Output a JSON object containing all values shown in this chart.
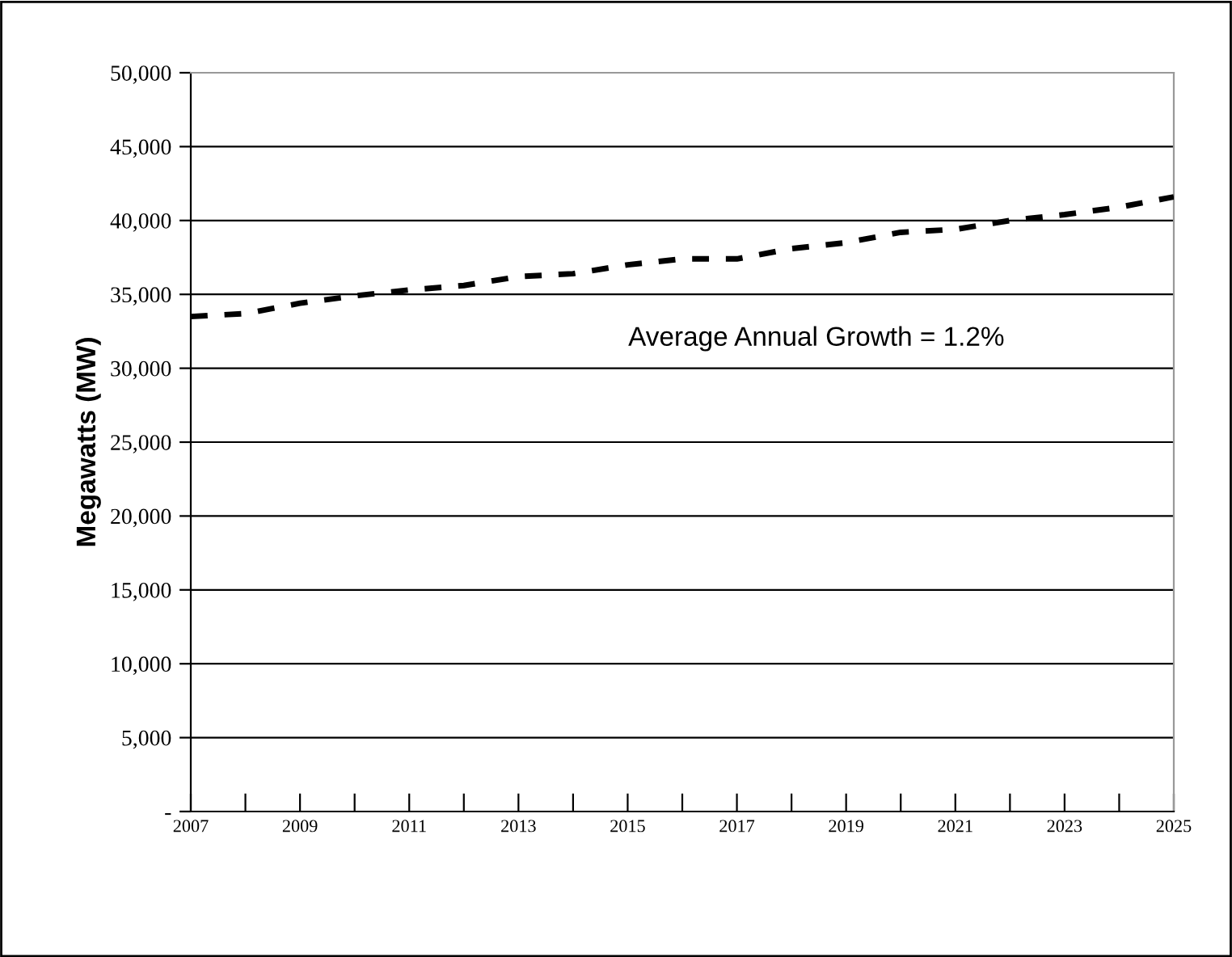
{
  "chart_data": {
    "type": "line",
    "ylabel": "Megawatts (MW)",
    "x": [
      2007,
      2008,
      2009,
      2010,
      2011,
      2012,
      2013,
      2014,
      2015,
      2016,
      2017,
      2018,
      2019,
      2020,
      2021,
      2022,
      2023,
      2024,
      2025
    ],
    "values": [
      33500,
      33700,
      34400,
      34900,
      35300,
      35600,
      36200,
      36400,
      37000,
      37400,
      37400,
      38100,
      38500,
      39200,
      39400,
      40000,
      40400,
      40900,
      41600
    ],
    "color": "#000000",
    "line_style": "dashed",
    "marker": "none",
    "xlim": [
      2007,
      2025
    ],
    "xticks": [
      2007,
      {
        "value": 2008,
        "label": null
      },
      2009,
      {
        "value": 2010,
        "label": null
      },
      2011,
      {
        "value": 2012,
        "label": null
      },
      2013,
      {
        "value": 2014,
        "label": null
      },
      2015,
      {
        "value": 2016,
        "label": null
      },
      2017,
      {
        "value": 2018,
        "label": null
      },
      2019,
      {
        "value": 2020,
        "label": null
      },
      2021,
      {
        "value": 2022,
        "label": null
      },
      2023,
      {
        "value": 2024,
        "label": null
      },
      2025
    ],
    "ylim": [
      0,
      50000
    ],
    "yticks": [
      {
        "value": 0,
        "label": "-"
      },
      {
        "value": 5000,
        "label": "5,000"
      },
      {
        "value": 10000,
        "label": "10,000"
      },
      {
        "value": 15000,
        "label": "15,000"
      },
      {
        "value": 20000,
        "label": "20,000"
      },
      {
        "value": 25000,
        "label": "25,000"
      },
      {
        "value": 30000,
        "label": "30,000"
      },
      {
        "value": 35000,
        "label": "35,000"
      },
      {
        "value": 40000,
        "label": "40,000"
      },
      {
        "value": 45000,
        "label": "45,000"
      },
      {
        "value": 50000,
        "label": "50,000"
      }
    ],
    "grid": "y",
    "annotations": [
      "Average Annual Growth = 1.2%"
    ]
  }
}
